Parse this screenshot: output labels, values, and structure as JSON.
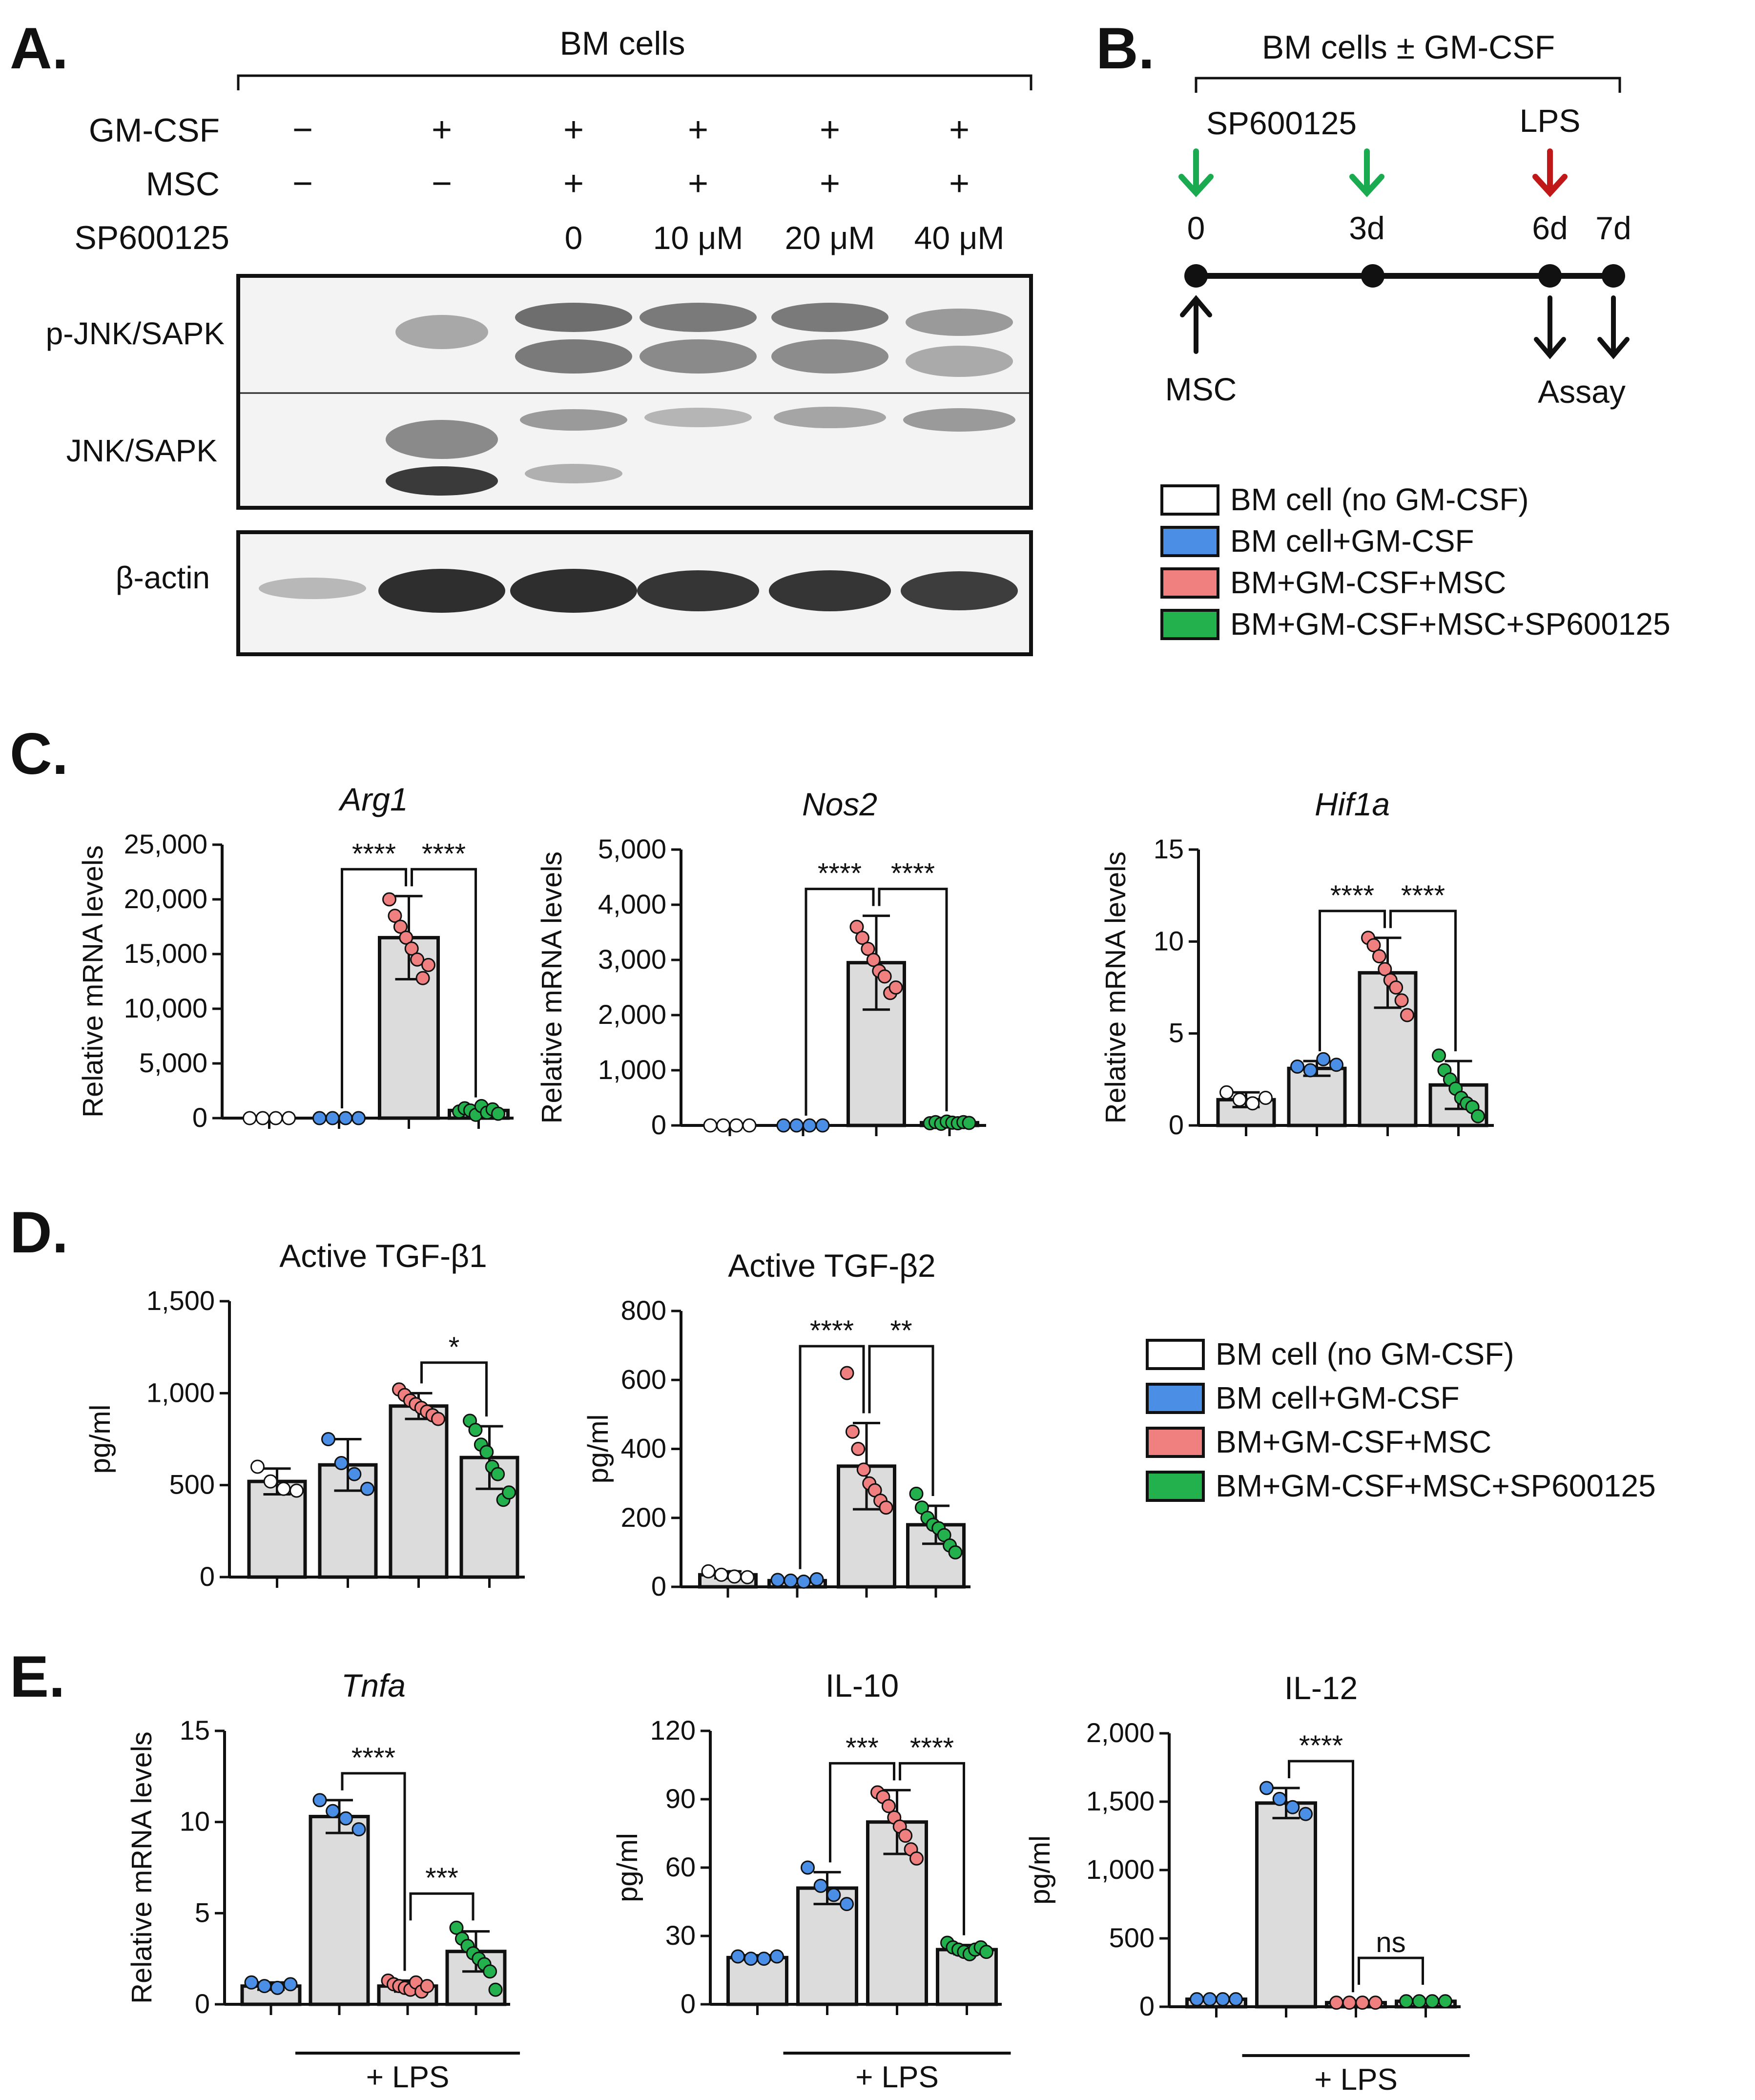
{
  "colors": {
    "ctrl": "#ffffff",
    "gm": "#4a8ee6",
    "msc": "#f08080",
    "sp": "#22b14c",
    "bar": "#dcdcdc",
    "arrow_green": "#1aaa50",
    "arrow_red": "#c01818"
  },
  "panelA": {
    "label": "A.",
    "header": "BM cells",
    "row_labels": [
      "GM-CSF",
      "MSC",
      "SP600125"
    ],
    "gmcsf": [
      "−",
      "+",
      "+",
      "+",
      "+",
      "+"
    ],
    "msc": [
      "−",
      "−",
      "+",
      "+",
      "+",
      "+"
    ],
    "sp": [
      "",
      "",
      "0",
      "10 μM",
      "20 μM",
      "40 μM"
    ],
    "blot_labels": [
      "p-JNK/SAPK",
      "JNK/SAPK",
      "β-actin"
    ]
  },
  "panelB": {
    "label": "B.",
    "header": "BM cells ± GM-CSF",
    "drug": "SP600125",
    "stim": "LPS",
    "time_labels": [
      "0",
      "3d",
      "6d",
      "7d"
    ],
    "bottom_left": "MSC",
    "bottom_right": "Assay"
  },
  "legend": [
    "BM cell (no GM-CSF)",
    "BM cell+GM-CSF",
    "BM+GM-CSF+MSC",
    "BM+GM-CSF+MSC+SP600125"
  ],
  "labels": {
    "C": "C.",
    "D": "D.",
    "E": "E."
  },
  "chart_data": [
    {
      "id": "arg1",
      "type": "bar",
      "title": "Arg1",
      "title_italic": true,
      "ylabel": "Relative mRNA levels",
      "ylim": [
        0,
        25000
      ],
      "ticks": [
        "0",
        "5,000",
        "10,000",
        "15,000",
        "20,000",
        "25,000"
      ],
      "groups": [
        "ctrl",
        "gm",
        "msc",
        "sp"
      ],
      "values": [
        0,
        0,
        16500,
        700
      ],
      "sd": [
        0,
        0,
        3800,
        300
      ],
      "points": [
        [
          0,
          0,
          0,
          0
        ],
        [
          0,
          0,
          0,
          0
        ],
        [
          20000,
          18500,
          17500,
          16500,
          15500,
          14500,
          12800,
          14000
        ],
        [
          600,
          900,
          700,
          300,
          1100,
          500,
          800,
          400
        ]
      ],
      "brackets": [
        {
          "from": 1,
          "to": 2,
          "text": "****"
        },
        {
          "from": 2,
          "to": 3,
          "text": "****"
        }
      ],
      "lps_line": false
    },
    {
      "id": "nos2",
      "type": "bar",
      "title": "Nos2",
      "title_italic": true,
      "ylabel": "Relative mRNA levels",
      "ylim": [
        0,
        5000
      ],
      "ticks": [
        "0",
        "1,000",
        "2,000",
        "3,000",
        "4,000",
        "5,000"
      ],
      "groups": [
        "ctrl",
        "gm",
        "msc",
        "sp"
      ],
      "values": [
        0,
        0,
        2950,
        50
      ],
      "sd": [
        0,
        0,
        850,
        30
      ],
      "points": [
        [
          0,
          0,
          0,
          0
        ],
        [
          0,
          0,
          0,
          0
        ],
        [
          3600,
          3400,
          3200,
          3000,
          2800,
          2700,
          2400,
          2500
        ],
        [
          40,
          60,
          30,
          70,
          50,
          40,
          60,
          45
        ]
      ],
      "brackets": [
        {
          "from": 1,
          "to": 2,
          "text": "****"
        },
        {
          "from": 2,
          "to": 3,
          "text": "****"
        }
      ],
      "lps_line": false
    },
    {
      "id": "hif1a",
      "type": "bar",
      "title": "Hif1a",
      "title_italic": true,
      "ylabel": "Relative mRNA levels",
      "ylim": [
        0,
        15
      ],
      "ticks": [
        "0",
        "5",
        "10",
        "15"
      ],
      "groups": [
        "ctrl",
        "gm",
        "msc",
        "sp"
      ],
      "values": [
        1.4,
        3.1,
        8.3,
        2.2
      ],
      "sd": [
        0.4,
        0.4,
        1.9,
        1.3
      ],
      "points": [
        [
          1.8,
          1.4,
          1.2,
          1.5
        ],
        [
          3.2,
          3.0,
          3.6,
          3.3
        ],
        [
          10.2,
          9.8,
          9.2,
          8.5,
          7.9,
          7.5,
          6.8,
          6.0
        ],
        [
          3.8,
          3.0,
          2.5,
          2.0,
          1.5,
          1.2,
          1.0,
          0.5
        ]
      ],
      "brackets": [
        {
          "from": 1,
          "to": 2,
          "text": "****"
        },
        {
          "from": 2,
          "to": 3,
          "text": "****"
        }
      ],
      "lps_line": false
    },
    {
      "id": "tgfb1",
      "type": "bar",
      "title": "Active TGF-β1",
      "title_italic": false,
      "ylabel": "pg/ml",
      "ylim": [
        0,
        1500
      ],
      "ticks": [
        "0",
        "500",
        "1,000",
        "1,500"
      ],
      "groups": [
        "ctrl",
        "gm",
        "msc",
        "sp"
      ],
      "values": [
        520,
        610,
        930,
        650
      ],
      "sd": [
        70,
        140,
        70,
        170
      ],
      "points": [
        [
          600,
          520,
          480,
          470
        ],
        [
          750,
          620,
          560,
          480
        ],
        [
          1020,
          990,
          960,
          940,
          920,
          900,
          880,
          860
        ],
        [
          850,
          800,
          720,
          680,
          600,
          560,
          420,
          460
        ]
      ],
      "brackets": [
        {
          "from": 2,
          "to": 3,
          "text": "*"
        }
      ],
      "lps_line": false
    },
    {
      "id": "tgfb2",
      "type": "bar",
      "title": "Active TGF-β2",
      "title_italic": false,
      "ylabel": "pg/ml",
      "ylim": [
        0,
        800
      ],
      "ticks": [
        "0",
        "200",
        "400",
        "600",
        "800"
      ],
      "groups": [
        "ctrl",
        "gm",
        "msc",
        "sp"
      ],
      "values": [
        35,
        18,
        350,
        180
      ],
      "sd": [
        10,
        5,
        125,
        55
      ],
      "points": [
        [
          45,
          35,
          30,
          28
        ],
        [
          20,
          18,
          15,
          22
        ],
        [
          620,
          450,
          400,
          340,
          300,
          280,
          250,
          230
        ],
        [
          270,
          230,
          200,
          180,
          170,
          150,
          120,
          100
        ]
      ],
      "brackets": [
        {
          "from": 1,
          "to": 2,
          "text": "****"
        },
        {
          "from": 2,
          "to": 3,
          "text": "**"
        }
      ],
      "lps_line": false
    },
    {
      "id": "tnfa",
      "type": "bar",
      "title": "Tnfa",
      "title_italic": true,
      "ylabel": "Relative mRNA levels",
      "ylim": [
        0,
        15
      ],
      "ticks": [
        "0",
        "5",
        "10",
        "15"
      ],
      "groups": [
        "gm",
        "gm",
        "msc",
        "sp"
      ],
      "values": [
        1.0,
        10.3,
        1.0,
        2.9
      ],
      "sd": [
        0.2,
        0.9,
        0.3,
        1.1
      ],
      "points": [
        [
          1.2,
          1.0,
          0.9,
          1.1
        ],
        [
          11.2,
          10.6,
          10.2,
          9.6
        ],
        [
          1.3,
          1.1,
          1.0,
          0.9,
          0.8,
          1.2,
          0.7,
          1.0
        ],
        [
          4.2,
          3.6,
          3.2,
          2.8,
          2.5,
          2.2,
          1.8,
          0.8
        ]
      ],
      "brackets": [
        {
          "from": 1,
          "to": 2,
          "text": "****"
        },
        {
          "from": 2,
          "to": 3,
          "text": "***",
          "low": true
        }
      ],
      "lps_line": true,
      "lps_label": "+ LPS"
    },
    {
      "id": "il10",
      "type": "bar",
      "title": "IL-10",
      "title_italic": false,
      "ylabel": "pg/ml",
      "ylim": [
        0,
        120
      ],
      "ticks": [
        "0",
        "30",
        "60",
        "90",
        "120"
      ],
      "groups": [
        "gm",
        "gm",
        "msc",
        "sp"
      ],
      "values": [
        20.5,
        51,
        80,
        24
      ],
      "sd": [
        1,
        7,
        14,
        2
      ],
      "points": [
        [
          21,
          20,
          20,
          21
        ],
        [
          60,
          52,
          48,
          44
        ],
        [
          93,
          91,
          87,
          82,
          78,
          74,
          68,
          64
        ],
        [
          27,
          25,
          24,
          23,
          22,
          24,
          25,
          23
        ]
      ],
      "brackets": [
        {
          "from": 1,
          "to": 2,
          "text": "***"
        },
        {
          "from": 2,
          "to": 3,
          "text": "****"
        }
      ],
      "lps_line": true,
      "lps_label": "+ LPS"
    },
    {
      "id": "il12",
      "type": "bar",
      "title": "IL-12",
      "title_italic": false,
      "ylabel": "pg/ml",
      "ylim": [
        0,
        2000
      ],
      "ticks": [
        "0",
        "500",
        "1,000",
        "1,500",
        "2,000"
      ],
      "groups": [
        "gm",
        "gm",
        "msc",
        "sp"
      ],
      "values": [
        55,
        1490,
        30,
        40
      ],
      "sd": [
        5,
        110,
        5,
        5
      ],
      "points": [
        [
          55,
          55,
          55,
          55
        ],
        [
          1600,
          1520,
          1460,
          1410
        ],
        [
          30,
          30,
          30,
          30
        ],
        [
          40,
          40,
          40,
          40
        ]
      ],
      "brackets": [
        {
          "from": 1,
          "to": 2,
          "text": "****"
        },
        {
          "from": 2,
          "to": 3,
          "text": "ns",
          "low": true
        }
      ],
      "lps_line": true,
      "lps_label": "+ LPS"
    }
  ]
}
